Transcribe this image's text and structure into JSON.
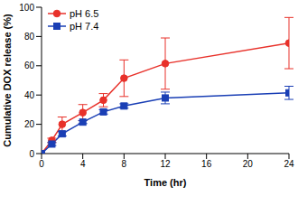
{
  "chart_data": {
    "type": "line",
    "x_label": "Time (hr)",
    "y_label": "Cumulative DOX release (%)",
    "xlim": [
      0,
      24
    ],
    "xticks": [
      0,
      4,
      8,
      12,
      16,
      20,
      24
    ],
    "ylim": [
      0,
      100
    ],
    "yticks": [
      0,
      20,
      40,
      60,
      80,
      100
    ],
    "grid": false,
    "legend": "upper left",
    "series": [
      {
        "name": "pH 6.5",
        "color": "#e8312a",
        "marker": "circle",
        "line_style": "solid",
        "x": [
          0,
          1,
          2,
          4,
          6,
          8,
          12,
          24
        ],
        "values": [
          0,
          9,
          20,
          28,
          36.5,
          51.5,
          61.5,
          75.5
        ],
        "errors": [
          0,
          1.5,
          5,
          5.5,
          4.5,
          12.5,
          17.5,
          17.5
        ]
      },
      {
        "name": "pH 7.4",
        "color": "#1a3fb5",
        "marker": "square",
        "line_style": "solid",
        "x": [
          0,
          1,
          2,
          4,
          6,
          8,
          12,
          24
        ],
        "values": [
          0,
          6.5,
          13.5,
          21.5,
          28.5,
          32.5,
          38,
          41.5
        ],
        "errors": [
          0,
          1,
          1.5,
          1,
          1.5,
          1.5,
          4,
          4.5
        ]
      }
    ]
  }
}
